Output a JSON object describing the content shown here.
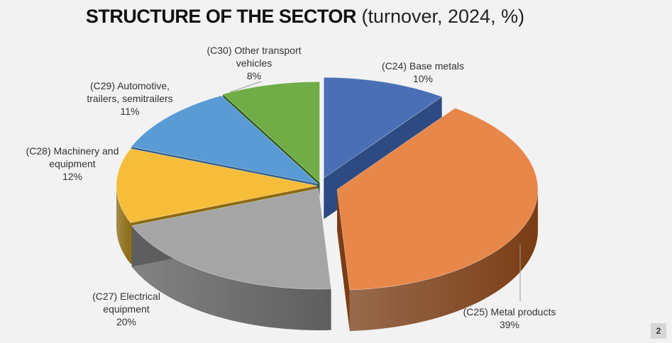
{
  "title": {
    "bold": "STRUCTURE OF THE SECTOR",
    "light": "(turnover, 2024, %)"
  },
  "page_number": "2",
  "chart_data": {
    "type": "pie",
    "title": "STRUCTURE OF THE SECTOR (turnover, 2024, %)",
    "slices": [
      {
        "label_lines": [
          "(C24) Base metals",
          "10%"
        ],
        "name": "(C24) Base metals",
        "value": 10,
        "color": "#4a6fb5",
        "side": "#2e4a82"
      },
      {
        "label_lines": [
          "(C25) Metal products",
          "39%"
        ],
        "name": "(C25) Metal products",
        "value": 39,
        "color": "#e8874a",
        "side": "#7a3d15"
      },
      {
        "label_lines": [
          "(C27) Electrical",
          "equipment",
          "20%"
        ],
        "name": "(C27) Electrical equipment",
        "value": 20,
        "color": "#a5a5a5",
        "side": "#5e5e5e"
      },
      {
        "label_lines": [
          "(C28) Machinery and",
          "equipment",
          "12%"
        ],
        "name": "(C28) Machinery and equipment",
        "value": 12,
        "color": "#f5bd3a",
        "side": "#8a6a10"
      },
      {
        "label_lines": [
          "(C29) Automotive,",
          "trailers, semitrailers",
          "11%"
        ],
        "name": "(C29) Automotive, trailers, semitrailers",
        "value": 11,
        "color": "#5b9bd5",
        "side": "#2f5f8f"
      },
      {
        "label_lines": [
          "(C30) Other transport",
          "vehicles",
          "8%"
        ],
        "name": "(C30) Other transport vehicles",
        "value": 8,
        "color": "#70ad47",
        "side": "#2e5a18"
      }
    ]
  }
}
